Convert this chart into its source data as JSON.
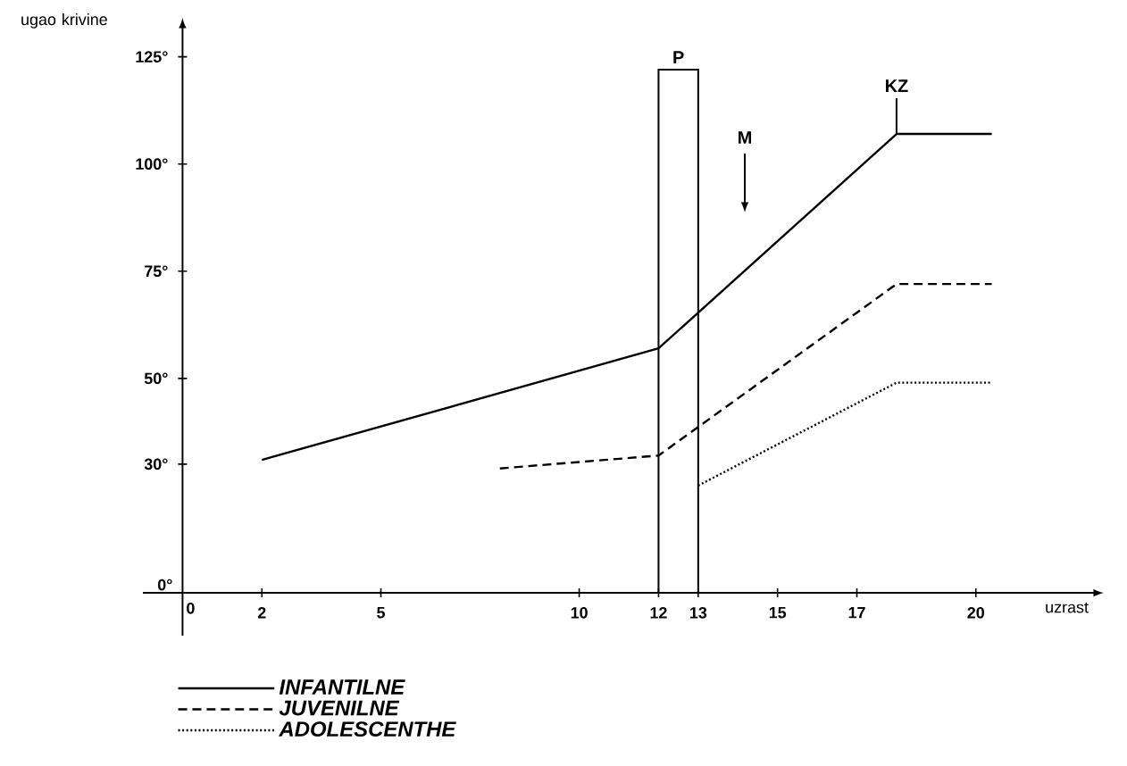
{
  "chart_data": {
    "type": "line",
    "xlabel": "uzrast",
    "ylabel": "ugao krivine",
    "xlim": [
      -1,
      23
    ],
    "ylim": [
      -10,
      132
    ],
    "xticks": [
      0,
      2,
      5,
      10,
      12,
      13,
      15,
      17,
      20
    ],
    "yticks": [
      {
        "value": 0,
        "label": "0°"
      },
      {
        "value": 30,
        "label": "30°"
      },
      {
        "value": 50,
        "label": "50°"
      },
      {
        "value": 75,
        "label": "75°"
      },
      {
        "value": 100,
        "label": "100°"
      },
      {
        "value": 125,
        "label": "125°"
      }
    ],
    "series": [
      {
        "name": "INFANTILNE",
        "color": "#000000",
        "line_style": "solid",
        "x": [
          2,
          12,
          18,
          20.4
        ],
        "values": [
          31,
          57,
          107,
          107
        ]
      },
      {
        "name": "JUVENILNE",
        "color": "#000000",
        "line_style": "dashed",
        "x": [
          8,
          12,
          18,
          20.4
        ],
        "values": [
          29,
          32,
          72,
          72
        ]
      },
      {
        "name": "ADOLESCENTHE",
        "color": "#000000",
        "line_style": "dotted",
        "x": [
          13,
          18,
          20.4
        ],
        "values": [
          25,
          49,
          49
        ]
      },
      {
        "type": "bar",
        "color": "#000000",
        "x": [
          12.5
        ],
        "values": [
          122
        ]
      }
    ],
    "annotations": [
      {
        "text": "P",
        "x": 12.5,
        "y": 122
      },
      {
        "text": "KZ",
        "x": 18,
        "y": 107
      },
      "M"
    ],
    "legend": "bottom left",
    "marker": "none"
  }
}
